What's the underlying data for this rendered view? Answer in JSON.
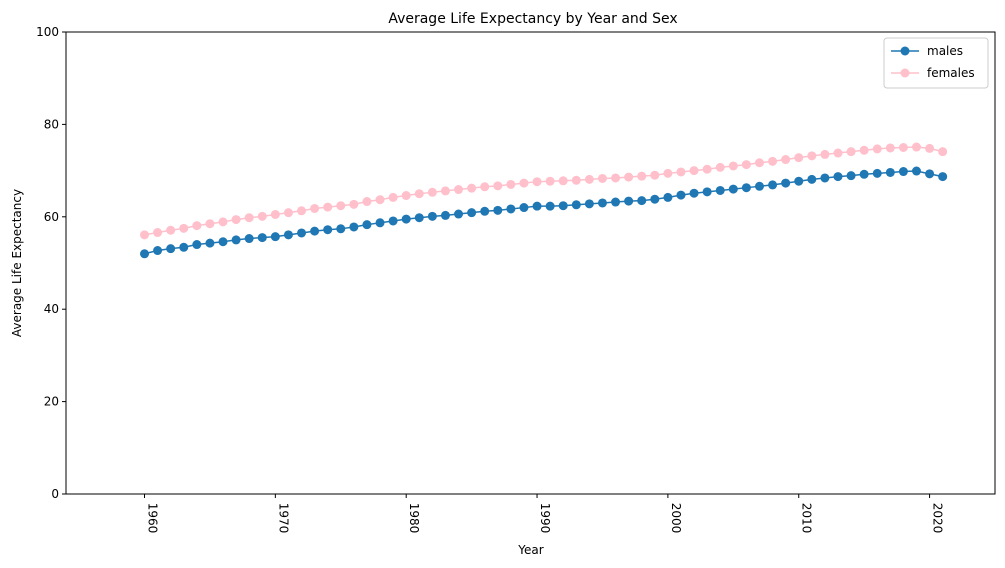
{
  "chart_data": {
    "type": "line",
    "title": "Average Life Expectancy by Year and Sex",
    "xlabel": "Year",
    "ylabel": "Average Life Expectancy",
    "xlim": [
      1954,
      2025
    ],
    "ylim": [
      0,
      100
    ],
    "xticks": [
      1960,
      1970,
      1980,
      1990,
      2000,
      2010,
      2020
    ],
    "yticks": [
      0,
      20,
      40,
      60,
      80,
      100
    ],
    "legend_position": "top-right",
    "grid": false,
    "x": [
      1960,
      1961,
      1962,
      1963,
      1964,
      1965,
      1966,
      1967,
      1968,
      1969,
      1970,
      1971,
      1972,
      1973,
      1974,
      1975,
      1976,
      1977,
      1978,
      1979,
      1980,
      1981,
      1982,
      1983,
      1984,
      1985,
      1986,
      1987,
      1988,
      1989,
      1990,
      1991,
      1992,
      1993,
      1994,
      1995,
      1996,
      1997,
      1998,
      1999,
      2000,
      2001,
      2002,
      2003,
      2004,
      2005,
      2006,
      2007,
      2008,
      2009,
      2010,
      2011,
      2012,
      2013,
      2014,
      2015,
      2016,
      2017,
      2018,
      2019,
      2020,
      2021
    ],
    "series": [
      {
        "name": "males",
        "color": "#1f77b4",
        "values": [
          52.0,
          52.7,
          53.1,
          53.4,
          54.0,
          54.3,
          54.6,
          55.0,
          55.3,
          55.5,
          55.7,
          56.1,
          56.5,
          56.9,
          57.2,
          57.4,
          57.8,
          58.3,
          58.7,
          59.1,
          59.5,
          59.8,
          60.1,
          60.3,
          60.6,
          60.9,
          61.2,
          61.4,
          61.7,
          62.0,
          62.3,
          62.3,
          62.4,
          62.6,
          62.8,
          63.0,
          63.2,
          63.4,
          63.5,
          63.8,
          64.2,
          64.7,
          65.1,
          65.4,
          65.7,
          66.0,
          66.3,
          66.6,
          66.9,
          67.3,
          67.7,
          68.1,
          68.4,
          68.7,
          68.9,
          69.2,
          69.4,
          69.6,
          69.8,
          69.9,
          69.3,
          68.7
        ]
      },
      {
        "name": "females",
        "color": "#ffc0cb",
        "values": [
          56.1,
          56.6,
          57.1,
          57.5,
          58.1,
          58.5,
          58.9,
          59.4,
          59.8,
          60.1,
          60.5,
          60.9,
          61.3,
          61.8,
          62.1,
          62.4,
          62.7,
          63.3,
          63.7,
          64.2,
          64.6,
          65.0,
          65.3,
          65.6,
          65.9,
          66.2,
          66.5,
          66.7,
          67.0,
          67.3,
          67.6,
          67.7,
          67.8,
          67.9,
          68.1,
          68.3,
          68.4,
          68.6,
          68.8,
          69.0,
          69.4,
          69.7,
          70.0,
          70.3,
          70.7,
          71.0,
          71.3,
          71.7,
          72.0,
          72.4,
          72.8,
          73.2,
          73.5,
          73.8,
          74.1,
          74.4,
          74.7,
          74.9,
          75.0,
          75.1,
          74.8,
          74.1
        ]
      }
    ]
  }
}
